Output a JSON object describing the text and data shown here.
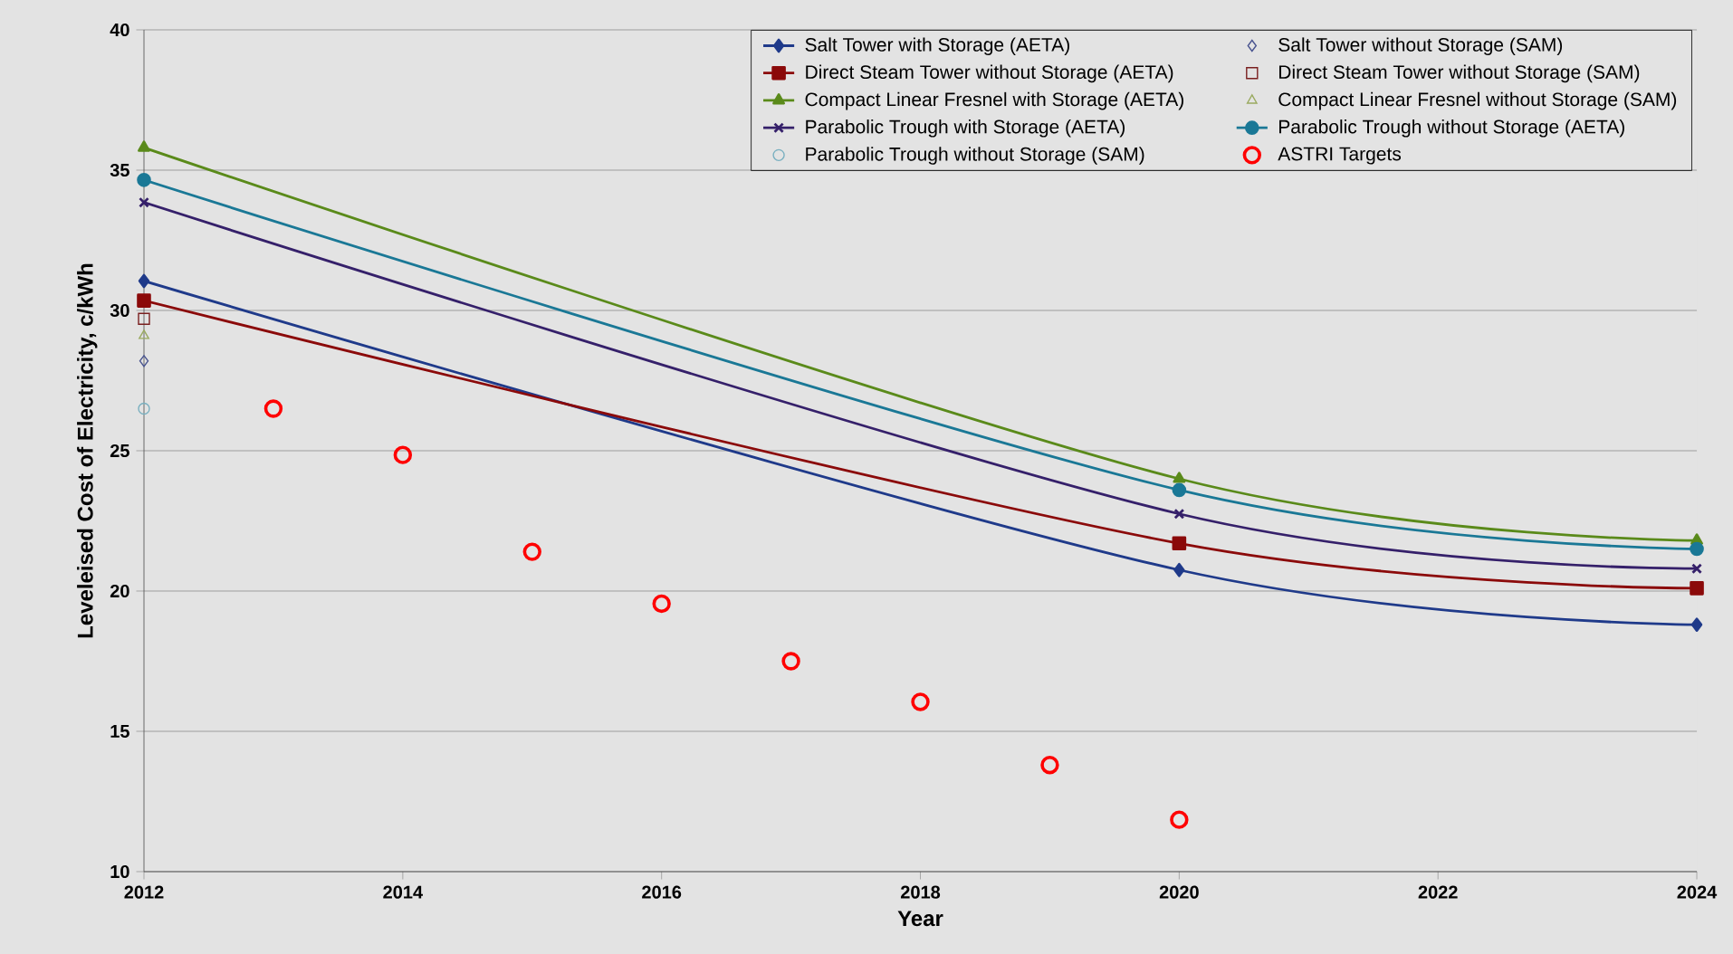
{
  "chart_data": {
    "type": "line",
    "xlabel": "Year",
    "ylabel": "Leveleised Cost of Electricity, c/kWh",
    "xlim": [
      2012,
      2024
    ],
    "ylim": [
      10,
      40
    ],
    "xticks": [
      2012,
      2014,
      2016,
      2018,
      2020,
      2022,
      2024
    ],
    "yticks": [
      10,
      15,
      20,
      25,
      30,
      35,
      40
    ],
    "grid": "y",
    "legend": "top right",
    "series": [
      {
        "name": "Salt Tower with Storage (AETA)",
        "type": "line",
        "marker": "diamond",
        "color": "#1f3a8a",
        "x": [
          2012,
          2020,
          2024
        ],
        "values": [
          31.05,
          20.75,
          18.8
        ]
      },
      {
        "name": "Salt Tower without Storage (SAM)",
        "type": "scatter",
        "marker": "diamond",
        "color": "#4a5590",
        "x": [
          2012
        ],
        "values": [
          28.2
        ]
      },
      {
        "name": "Direct Steam Tower without Storage (AETA)",
        "type": "line",
        "marker": "square",
        "color": "#8b0a0a",
        "x": [
          2012,
          2020,
          2024
        ],
        "values": [
          30.35,
          21.7,
          20.1
        ]
      },
      {
        "name": "Direct Steam Tower without Storage (SAM)",
        "type": "scatter",
        "marker": "square",
        "color": "#7a2020",
        "x": [
          2012
        ],
        "values": [
          29.7
        ]
      },
      {
        "name": "Compact Linear Fresnel with Storage (AETA)",
        "type": "line",
        "marker": "triangle",
        "color": "#5a8a1a",
        "x": [
          2012,
          2020,
          2024
        ],
        "values": [
          35.8,
          24.0,
          21.8
        ]
      },
      {
        "name": "Compact Linear Fresnel without Storage (SAM)",
        "type": "scatter",
        "marker": "triangle",
        "color": "#9aaa60",
        "x": [
          2012
        ],
        "values": [
          29.1
        ]
      },
      {
        "name": "Parabolic Trough with Storage (AETA)",
        "type": "line",
        "marker": "cross",
        "color": "#35206a",
        "x": [
          2012,
          2020,
          2024
        ],
        "values": [
          33.85,
          22.75,
          20.8
        ]
      },
      {
        "name": "Parabolic Trough without Storage (AETA)",
        "type": "line",
        "marker": "circle",
        "color": "#1a7896",
        "x": [
          2012,
          2020,
          2024
        ],
        "values": [
          34.65,
          23.6,
          21.5
        ]
      },
      {
        "name": "Parabolic Trough without Storage (SAM)",
        "type": "scatter",
        "marker": "circle",
        "color": "#7ab0c0",
        "x": [
          2012
        ],
        "values": [
          26.5
        ]
      },
      {
        "name": "ASTRI Targets",
        "type": "scatter",
        "marker": "circle",
        "color": "#ff0000",
        "x": [
          2013,
          2014,
          2015,
          2016,
          2017,
          2018,
          2019,
          2020
        ],
        "values": [
          26.5,
          24.85,
          21.4,
          19.55,
          17.5,
          16.05,
          13.8,
          11.85
        ]
      }
    ]
  }
}
